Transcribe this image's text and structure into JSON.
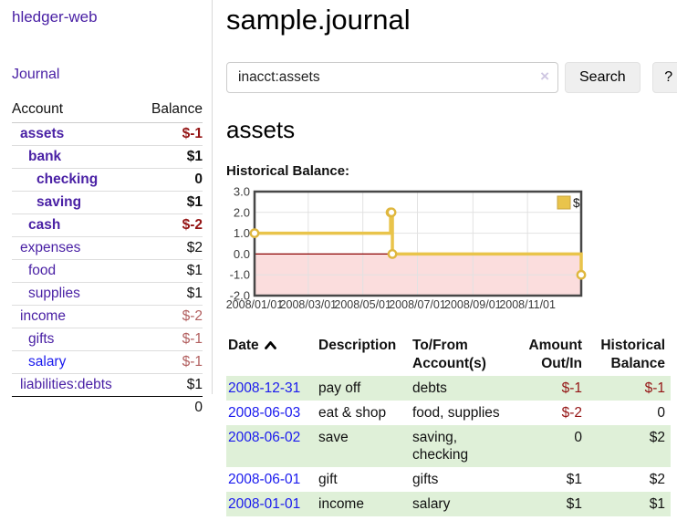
{
  "sidebar": {
    "brand": "hledger-web",
    "journal_label": "Journal",
    "accounts": {
      "header_account": "Account",
      "header_balance": "Balance",
      "rows": [
        {
          "name": "assets",
          "indent": 1,
          "bold": true,
          "balance": "$-1",
          "balance_class": "neg-strong",
          "link_color": "purple"
        },
        {
          "name": "bank",
          "indent": 2,
          "bold": true,
          "balance": "$1",
          "balance_class": "",
          "link_color": "purple"
        },
        {
          "name": "checking",
          "indent": 3,
          "bold": true,
          "balance": "0",
          "balance_class": "",
          "link_color": "purple"
        },
        {
          "name": "saving",
          "indent": 3,
          "bold": true,
          "balance": "$1",
          "balance_class": "",
          "link_color": "purple"
        },
        {
          "name": "cash",
          "indent": 2,
          "bold": true,
          "balance": "$-2",
          "balance_class": "neg-strong",
          "link_color": "purple"
        },
        {
          "name": "expenses",
          "indent": 1,
          "bold": false,
          "balance": "$2",
          "balance_class": "",
          "link_color": "purple"
        },
        {
          "name": "food",
          "indent": 2,
          "bold": false,
          "balance": "$1",
          "balance_class": "",
          "link_color": "purple"
        },
        {
          "name": "supplies",
          "indent": 2,
          "bold": false,
          "balance": "$1",
          "balance_class": "",
          "link_color": "purple"
        },
        {
          "name": "income",
          "indent": 1,
          "bold": false,
          "balance": "$-2",
          "balance_class": "neg-soft",
          "link_color": "purple"
        },
        {
          "name": "gifts",
          "indent": 2,
          "bold": false,
          "balance": "$-1",
          "balance_class": "neg-soft",
          "link_color": "purple"
        },
        {
          "name": "salary",
          "indent": 2,
          "bold": false,
          "balance": "$-1",
          "balance_class": "neg-soft",
          "link_color": "blue"
        },
        {
          "name": "liabilities:debts",
          "indent": 1,
          "bold": false,
          "balance": "$1",
          "balance_class": "",
          "link_color": "purple"
        }
      ],
      "total": "0"
    }
  },
  "header": {
    "title": "sample.journal"
  },
  "search": {
    "query": "inacct:assets",
    "clear_icon": "×",
    "button_label": "Search",
    "help_label": "?"
  },
  "account_page": {
    "heading": "assets",
    "chart_label": "Historical Balance:"
  },
  "chart_data": {
    "type": "line",
    "style": "step-after",
    "title": "Historical Balance",
    "series": [
      {
        "name": "$",
        "points": [
          {
            "date": "2008-01-01",
            "value": 1
          },
          {
            "date": "2008-06-01",
            "value": 2
          },
          {
            "date": "2008-06-02",
            "value": 2
          },
          {
            "date": "2008-06-03",
            "value": 0
          },
          {
            "date": "2008-12-31",
            "value": -1
          }
        ]
      }
    ],
    "x_range": [
      "2008-01-01",
      "2008-12-31"
    ],
    "ylim": [
      -2,
      3
    ],
    "yticks": [
      "3.0",
      "2.0",
      "1.0",
      "0.0",
      "-1.0",
      "-2.0"
    ],
    "ytick_values": [
      3,
      2,
      1,
      0,
      -1,
      -2
    ],
    "xtick_labels": [
      "2008/01/01",
      "2008/03/01",
      "2008/05/01",
      "2008/07/01",
      "2008/09/01",
      "2008/11/01"
    ],
    "xtick_dates": [
      "2008-01-01",
      "2008-03-01",
      "2008-05-01",
      "2008-07-01",
      "2008-09-01",
      "2008-11-01"
    ],
    "grid": true,
    "negative_region_shaded": true,
    "legend": {
      "label": "$",
      "position": "top-right"
    }
  },
  "register": {
    "headers": {
      "date": "Date",
      "sort_icon": "chevron-up",
      "description": "Description",
      "accounts": "To/From Account(s)",
      "amount": "Amount Out/In",
      "balance": "Historical Balance"
    },
    "rows": [
      {
        "date": "2008-12-31",
        "description": "pay off",
        "accounts": "debts",
        "amount": "$-1",
        "amount_negative": true,
        "balance": "$-1",
        "balance_negative": true
      },
      {
        "date": "2008-06-03",
        "description": "eat & shop",
        "accounts": "food, supplies",
        "amount": "$-2",
        "amount_negative": true,
        "balance": "0",
        "balance_negative": false
      },
      {
        "date": "2008-06-02",
        "description": "save",
        "accounts": "saving, checking",
        "amount": "0",
        "amount_negative": false,
        "balance": "$2",
        "balance_negative": false
      },
      {
        "date": "2008-06-01",
        "description": "gift",
        "accounts": "gifts",
        "amount": "$1",
        "amount_negative": false,
        "balance": "$2",
        "balance_negative": false
      },
      {
        "date": "2008-01-01",
        "description": "income",
        "accounts": "salary",
        "amount": "$1",
        "amount_negative": false,
        "balance": "$1",
        "balance_negative": false
      }
    ]
  },
  "colors": {
    "link_purple": "#4a21a5",
    "link_blue": "#1a1aee",
    "negative_strong": "#941414",
    "negative_soft": "#b25f5f",
    "row_stripe_green": "#dff0d8",
    "chart_line_gold": "#e9c44b",
    "chart_marker_gold": "#dfb73e",
    "chart_negative_fill": "#fbdddd",
    "chart_zero_line": "#8b0000",
    "chart_border": "#474747",
    "grid_line": "#e2e2e2",
    "sidebar_divider": "#d8d8d8",
    "button_bg": "#efefef",
    "input_border": "#cccccc",
    "clear_icon": "#cfc7e2"
  }
}
